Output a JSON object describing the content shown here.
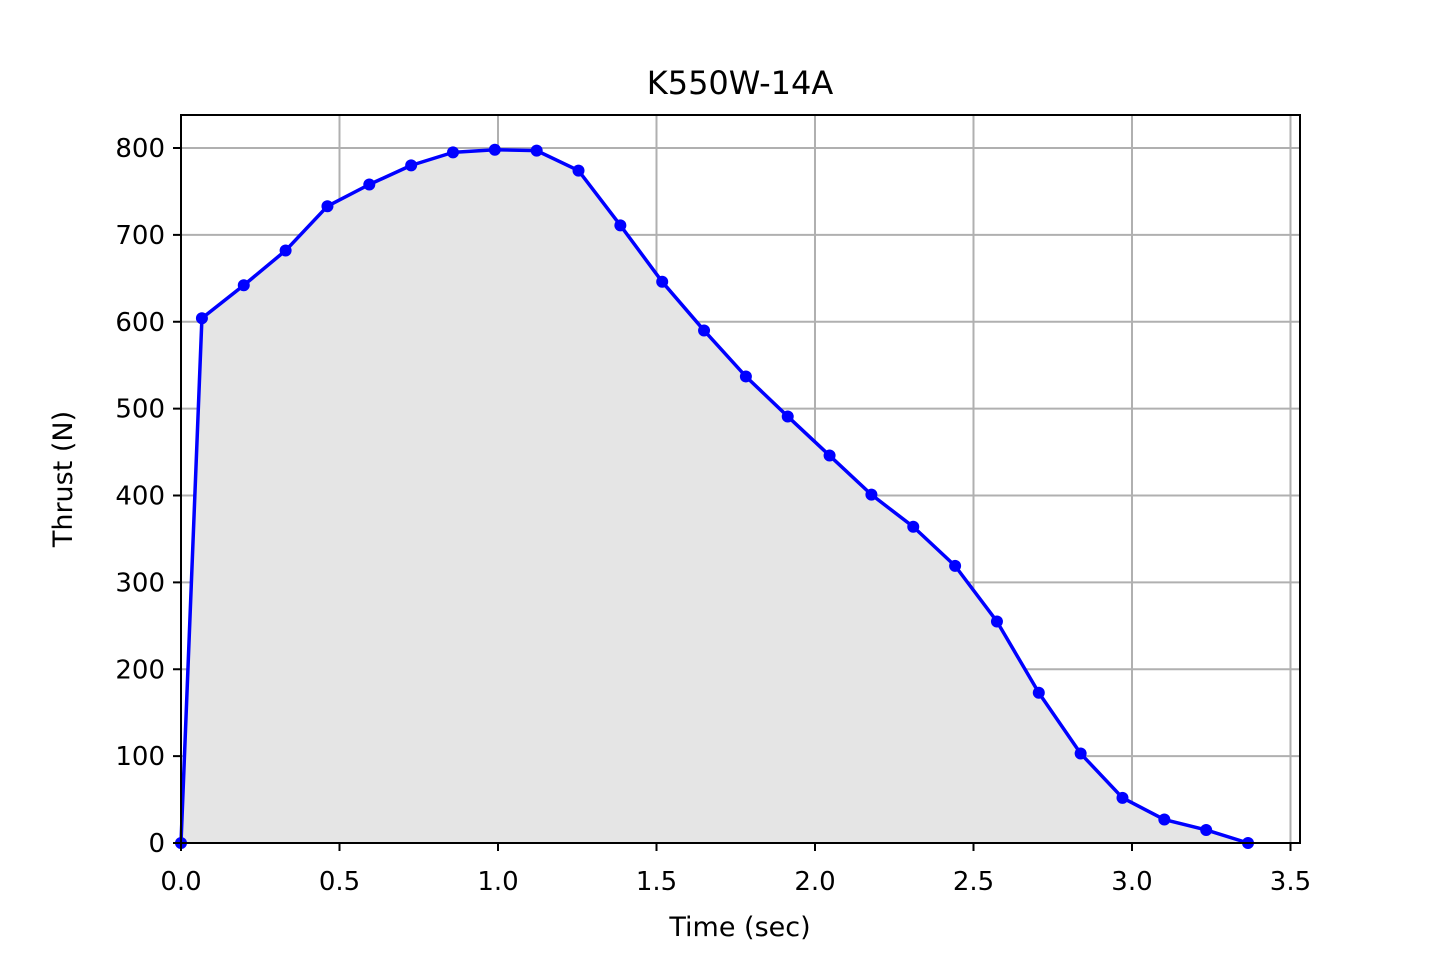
{
  "chart_data": {
    "type": "area",
    "title": "K550W-14A",
    "xlabel": "Time (sec)",
    "ylabel": "Thrust (N)",
    "xlim": [
      0,
      3.53
    ],
    "ylim": [
      0,
      838
    ],
    "xticks": [
      0.0,
      0.5,
      1.0,
      1.5,
      2.0,
      2.5,
      3.0,
      3.5
    ],
    "xtick_labels": [
      "0.0",
      "0.5",
      "1.0",
      "1.5",
      "2.0",
      "2.5",
      "3.0",
      "3.5"
    ],
    "yticks": [
      0,
      100,
      200,
      300,
      400,
      500,
      600,
      700,
      800
    ],
    "ytick_labels": [
      "0",
      "100",
      "200",
      "300",
      "400",
      "500",
      "600",
      "700",
      "800"
    ],
    "grid": true,
    "line_color": "#0000ff",
    "fill_color": "#e5e5e5",
    "grid_color": "#b0b0b0",
    "series": [
      {
        "x": [
          0.0,
          0.066,
          0.198,
          0.33,
          0.462,
          0.594,
          0.726,
          0.858,
          0.99,
          1.122,
          1.254,
          1.386,
          1.518,
          1.65,
          1.782,
          1.914,
          2.046,
          2.178,
          2.31,
          2.442,
          2.574,
          2.706,
          2.838,
          2.97,
          3.102,
          3.234,
          3.366
        ],
        "y": [
          0,
          604,
          642,
          682,
          733,
          758,
          780,
          795,
          798,
          797,
          774,
          711,
          646,
          590,
          537,
          491,
          446,
          401,
          364,
          319,
          255,
          173,
          103,
          52,
          27,
          15,
          0
        ]
      }
    ]
  }
}
